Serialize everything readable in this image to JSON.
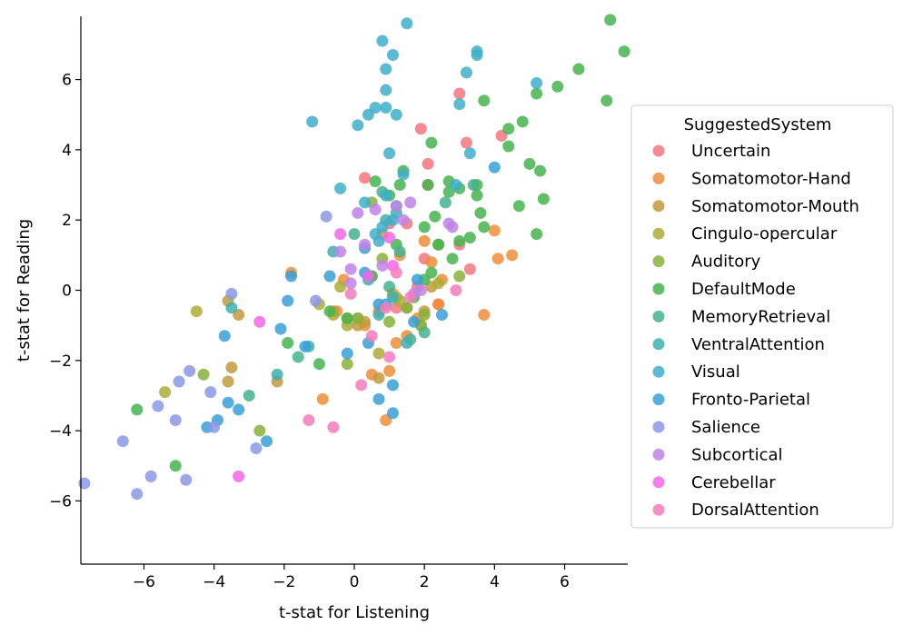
{
  "chart_data": {
    "type": "scatter",
    "xlabel": "t-stat for Listening",
    "ylabel": "t-stat for Reading",
    "xlim": [
      -7.8,
      7.8
    ],
    "ylim": [
      -7.8,
      7.8
    ],
    "xticks": [
      -6,
      -4,
      -2,
      0,
      2,
      4,
      6
    ],
    "yticks": [
      -6,
      -4,
      -2,
      0,
      2,
      4,
      6
    ],
    "legend_title": "SuggestedSystem",
    "legend_position": "right",
    "series": [
      {
        "name": "Uncertain",
        "color": "#f37680",
        "x": [
          3.0,
          3.2,
          4.2,
          1.9,
          2.1,
          2.1,
          0.3,
          1.0,
          1.5,
          2.0,
          3.3,
          3.0,
          1.8,
          2.4,
          1.2
        ],
        "y": [
          5.6,
          4.2,
          4.4,
          4.6,
          3.6,
          3.0,
          3.2,
          1.9,
          1.9,
          0.9,
          0.6,
          1.3,
          0.1,
          -0.4,
          -0.5
        ]
      },
      {
        "name": "Somatomotor-Hand",
        "color": "#ef8e3a",
        "x": [
          4.0,
          4.1,
          4.5,
          3.7,
          2.0,
          1.3,
          0.8,
          -0.3,
          0.5,
          0.7,
          0.9,
          1.0,
          1.5,
          2.4,
          2.5,
          -1.8,
          -0.9,
          0.5,
          1.1,
          1.8,
          2.2,
          0.3,
          1.2,
          -0.5
        ],
        "y": [
          1.7,
          0.9,
          1.0,
          -0.7,
          1.4,
          1.0,
          1.6,
          0.3,
          0.4,
          -0.6,
          -3.7,
          -2.3,
          -1.3,
          -0.4,
          0.3,
          0.5,
          -3.1,
          -2.4,
          -0.1,
          -0.8,
          0.8,
          -1.0,
          -1.5,
          -0.6
        ]
      },
      {
        "name": "Somatomotor-Mouth",
        "color": "#c19a3e",
        "x": [
          -3.6,
          -3.5,
          -3.3,
          -2.2,
          -0.2,
          0.3,
          0.7,
          1.5,
          2.0,
          2.2,
          -0.6,
          0.1,
          -3.6
        ],
        "y": [
          -0.3,
          -2.2,
          -0.7,
          -2.6,
          -0.8,
          -0.9,
          -2.5,
          -0.5,
          -0.6,
          0.1,
          -0.6,
          -1.0,
          -2.6
        ]
      },
      {
        "name": "Cingulo-opercular",
        "color": "#adab38",
        "x": [
          -4.5,
          -5.4,
          -1.0,
          -0.6,
          -0.2,
          0.1,
          0.7,
          1.3,
          1.9,
          2.4,
          1.2,
          -0.4
        ],
        "y": [
          -0.6,
          -2.9,
          -0.4,
          -0.7,
          -1.0,
          -0.8,
          -1.8,
          -0.3,
          -1.0,
          0.2,
          -0.2,
          0.1
        ]
      },
      {
        "name": "Auditory",
        "color": "#89b23b",
        "x": [
          -4.3,
          -2.7,
          -0.2,
          0.1,
          0.8,
          1.5,
          2.0,
          2.4,
          1.0,
          1.9,
          3.0,
          0.5
        ],
        "y": [
          -2.4,
          -4.0,
          -2.1,
          -0.8,
          0.9,
          -0.5,
          -0.7,
          1.3,
          -0.9,
          -1.0,
          0.4,
          2.5
        ]
      },
      {
        "name": "DefaultMode",
        "color": "#47b44f",
        "x": [
          7.3,
          7.7,
          6.4,
          5.8,
          7.2,
          4.8,
          5.0,
          5.3,
          4.4,
          4.4,
          3.7,
          3.5,
          3.0,
          2.2,
          1.4,
          1.0,
          0.6,
          2.1,
          2.7,
          3.7,
          3.5,
          3.6,
          2.4,
          2.0,
          2.3,
          1.2,
          5.2,
          5.4,
          5.2,
          4.7,
          3.3,
          2.7,
          0.5,
          -0.2,
          -1.0,
          -0.7,
          -1.9,
          -5.1,
          -6.2,
          1.3,
          2.2,
          1.7,
          2.0,
          2.8,
          3.0
        ],
        "y": [
          7.7,
          6.8,
          6.3,
          5.8,
          5.4,
          4.8,
          3.6,
          3.4,
          4.6,
          4.1,
          5.4,
          3.0,
          2.9,
          4.2,
          3.4,
          2.7,
          3.1,
          3.0,
          3.1,
          1.8,
          2.7,
          2.2,
          1.3,
          1.8,
          2.1,
          1.3,
          5.6,
          2.6,
          1.6,
          2.4,
          1.5,
          2.8,
          0.4,
          -0.8,
          -2.1,
          -0.6,
          -1.5,
          -5.0,
          -3.4,
          3.0,
          0.5,
          -0.2,
          0.3,
          0.9,
          1.4
        ]
      },
      {
        "name": "MemoryRetrieval",
        "color": "#45b28c",
        "x": [
          -3.0,
          -1.6,
          0.8,
          1.3,
          2.6,
          2.0,
          1.0,
          0.0,
          3.4,
          1.6
        ],
        "y": [
          -3.0,
          -1.9,
          2.8,
          1.1,
          2.5,
          -1.2,
          0.1,
          1.6,
          3.0,
          -1.4
        ]
      },
      {
        "name": "VentralAttention",
        "color": "#3eb0b0",
        "x": [
          -3.5,
          -2.2,
          -1.3,
          0.7,
          1.1,
          1.5,
          -0.6,
          0.4,
          1.2,
          0.9
        ],
        "y": [
          -0.5,
          -2.4,
          -1.6,
          -0.7,
          -0.2,
          -1.5,
          1.1,
          0.3,
          2.2,
          2.0
        ]
      },
      {
        "name": "Visual",
        "color": "#40aec9",
        "x": [
          1.5,
          0.8,
          1.1,
          0.9,
          0.9,
          0.6,
          3.5,
          3.5,
          5.2,
          3.2,
          3.0,
          1.2,
          1.4,
          -1.2,
          0.1,
          0.4,
          0.9,
          3.3,
          1.0,
          0.9,
          0.3,
          1.2,
          -0.4,
          0.7,
          0.8,
          1.1,
          0.6,
          2.9
        ],
        "y": [
          7.6,
          7.1,
          6.7,
          6.3,
          5.7,
          5.2,
          6.8,
          6.7,
          5.9,
          6.2,
          5.3,
          5.0,
          3.3,
          4.8,
          4.7,
          5.0,
          5.2,
          3.9,
          3.9,
          2.7,
          2.5,
          2.4,
          2.9,
          1.4,
          1.8,
          2.0,
          1.6,
          3.0
        ]
      },
      {
        "name": "Fronto-Parietal",
        "color": "#3a9fd6",
        "x": [
          4.0,
          -1.8,
          -1.9,
          -2.1,
          -1.4,
          -2.5,
          -3.7,
          -3.9,
          -3.6,
          -4.2,
          -3.3,
          -0.2,
          0.4,
          0.7,
          1.1,
          1.7,
          1.8,
          0.9,
          2.5,
          0.3,
          -0.7,
          1.1,
          0.7,
          0.3
        ],
        "y": [
          3.5,
          0.4,
          -0.3,
          -1.1,
          -1.6,
          -4.3,
          -1.3,
          -3.7,
          -3.2,
          -3.9,
          -3.4,
          -1.8,
          -1.5,
          -3.1,
          -2.7,
          -0.9,
          0.3,
          -0.4,
          -0.7,
          1.2,
          0.4,
          -3.5,
          -0.4,
          0.5
        ]
      },
      {
        "name": "Salience",
        "color": "#8b98e6",
        "x": [
          -7.7,
          -6.6,
          -6.2,
          -5.8,
          -5.1,
          -4.8,
          -4.7,
          -4.1,
          -4.0,
          -3.5,
          -2.8,
          -5.6,
          -1.1,
          -0.8,
          -5.0
        ],
        "y": [
          -5.5,
          -4.3,
          -5.8,
          -5.3,
          -3.7,
          -5.4,
          -2.3,
          -2.9,
          -3.9,
          -0.1,
          -4.5,
          -3.3,
          -0.3,
          2.1,
          -2.6
        ]
      },
      {
        "name": "Subcortical",
        "color": "#c083e8",
        "x": [
          0.1,
          -0.4,
          -0.1,
          0.6,
          0.8,
          1.2,
          1.6,
          1.4,
          2.7,
          1.7,
          2.8,
          -0.1,
          0.3,
          1.9
        ],
        "y": [
          2.2,
          1.1,
          0.6,
          2.3,
          0.7,
          2.4,
          2.5,
          2.0,
          1.9,
          -0.1,
          1.8,
          0.2,
          1.3,
          0.0
        ]
      },
      {
        "name": "Cerebellar",
        "color": "#f267e9",
        "x": [
          -2.7,
          -0.4,
          -3.3,
          1.0,
          1.1,
          0.4
        ],
        "y": [
          -0.9,
          1.6,
          -5.3,
          1.5,
          0.7,
          0.4
        ]
      },
      {
        "name": "DorsalAttention",
        "color": "#f57bbb",
        "x": [
          -1.3,
          -0.6,
          0.2,
          0.9,
          1.0,
          1.2,
          2.9,
          1.6,
          0.5,
          -0.1
        ],
        "y": [
          -3.7,
          -3.9,
          -2.7,
          -0.5,
          -1.9,
          0.5,
          0.0,
          -0.2,
          -1.3,
          -0.1
        ]
      }
    ]
  }
}
